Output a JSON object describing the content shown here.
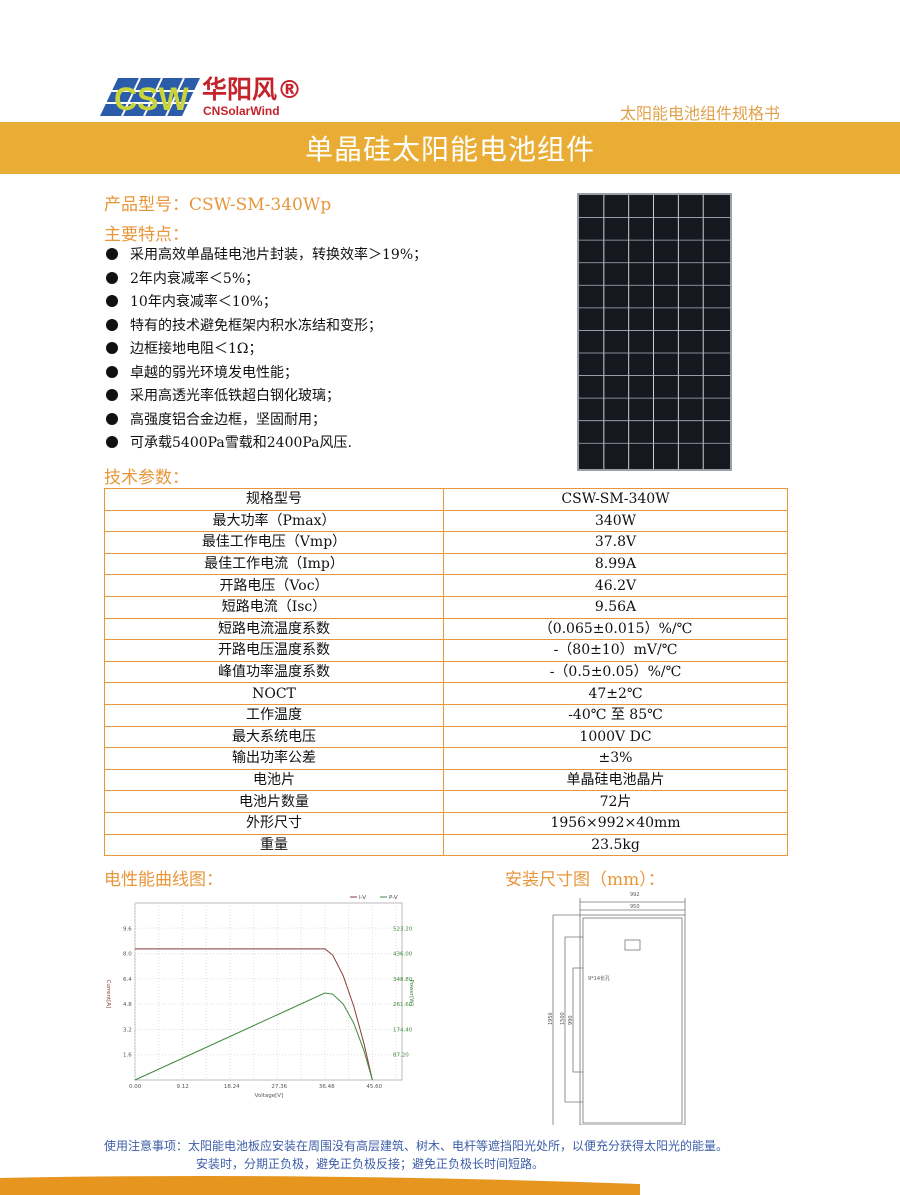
{
  "header": {
    "logo_text": "CSW",
    "logo_cn": "华阳风®",
    "logo_en": "CNSolarWind",
    "doc_type": "太阳能电池组件规格书",
    "title": "单晶硅太阳能电池组件"
  },
  "product": {
    "model_label": "产品型号：CSW-SM-340Wp",
    "features_heading": "主要特点：",
    "features": [
      "采用高效单晶硅电池片封装，转换效率＞19%；",
      "2年内衰减率＜5%；",
      "10年内衰减率＜10%；",
      "特有的技术避免框架内积水冻结和变形；",
      "边框接地电阻＜1Ω；",
      "卓越的弱光环境发电性能；",
      "采用高透光率低铁超白钢化玻璃；",
      "高强度铝合金边框，坚固耐用；",
      "可承载5400Pa雪载和2400Pa风压."
    ]
  },
  "specs": {
    "heading": "技术参数：",
    "rows": [
      [
        "规格型号",
        "CSW-SM-340W"
      ],
      [
        "最大功率（Pmax）",
        "340W"
      ],
      [
        "最佳工作电压（Vmp）",
        "37.8V"
      ],
      [
        "最佳工作电流（Imp）",
        "8.99A"
      ],
      [
        "开路电压（Voc）",
        "46.2V"
      ],
      [
        "短路电流（Isc）",
        "9.56A"
      ],
      [
        "短路电流温度系数",
        "（0.065±0.015）%/℃"
      ],
      [
        "开路电压温度系数",
        "-（80±10）mV/℃"
      ],
      [
        "峰值功率温度系数",
        "-（0.5±0.05）%/℃"
      ],
      [
        "NOCT",
        "47±2℃"
      ],
      [
        "工作温度",
        "-40℃ 至 85℃"
      ],
      [
        "最大系统电压",
        "1000V DC"
      ],
      [
        "输出功率公差",
        "±3%"
      ],
      [
        "电池片",
        "单晶硅电池晶片"
      ],
      [
        "电池片数量",
        "72片"
      ],
      [
        "外形尺寸",
        "1956×992×40mm"
      ],
      [
        "重量",
        "23.5kg"
      ]
    ]
  },
  "curve_heading": "电性能曲线图：",
  "dim_heading": "安装尺寸图（mm）：",
  "dimension_labels": {
    "width_outer": "992",
    "width_inner": "950",
    "height": "1956",
    "mount1": "1500",
    "mount2": "990",
    "hole": "9*14长孔"
  },
  "chart_data": {
    "type": "line",
    "xlabel": "Voltage[V]",
    "ylabel": "Current[A]",
    "y2label": "Power[W]",
    "xticks": [
      "0.00",
      "9.12",
      "18.24",
      "27.36",
      "36.48",
      "45.60"
    ],
    "yticks": [
      "1.6",
      "3.2",
      "4.8",
      "6.4",
      "8.0",
      "9.6"
    ],
    "y2ticks": [
      "87.20",
      "174.40",
      "261.60",
      "348.80",
      "436.00",
      "523.20"
    ],
    "xlim": [
      0,
      51.3
    ],
    "ylim": [
      0,
      11.2
    ],
    "y2lim": [
      0,
      610.4
    ],
    "grid": true,
    "legend": "top-right",
    "series": [
      {
        "name": "I-V",
        "color": "#8b3a3a",
        "x": [
          0,
          36.48,
          38,
          40,
          42,
          44,
          45.6
        ],
        "y": [
          8.3,
          8.3,
          7.9,
          6.6,
          4.7,
          2.3,
          0
        ]
      },
      {
        "name": "P-V",
        "color": "#3f8a3f",
        "x": [
          0,
          9.12,
          18.24,
          27.36,
          36.48,
          38,
          40,
          42,
          44,
          45.6
        ],
        "y": [
          0,
          75,
          150,
          225,
          300,
          296,
          262,
          197,
          101,
          0
        ]
      }
    ]
  },
  "notes": {
    "line1": "使用注意事项：太阳能电池板应安装在周围没有高层建筑、树木、电杆等遮挡阳光处所，以便充分获得太阳光的能量。",
    "line2": "安装时，分期正负极，避免正负极反接；避免正负极长时间短路。"
  },
  "colors": {
    "accent": "#e9ad35",
    "text_orange": "#e8963a",
    "logo_red": "#c4232b",
    "notes_blue": "#3d5ea8"
  }
}
